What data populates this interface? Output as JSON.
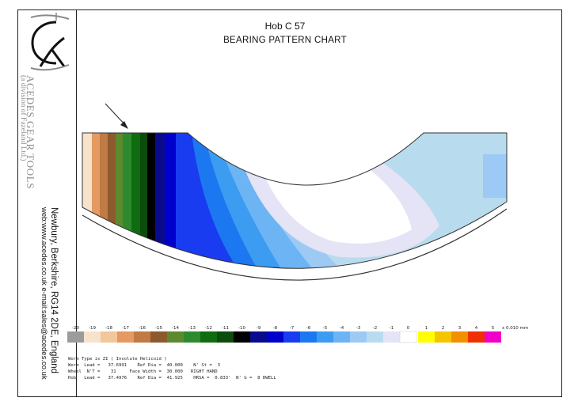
{
  "header": {
    "title": "Hob C 57",
    "subtitle": "BEARING PATTERN CHART"
  },
  "sidebar": {
    "company": "ACEDES GEAR TOOLS",
    "division": "(a division of Fazeland Ltd.)",
    "address": "Newbury, Berkshire, RG14 2DE, England",
    "contact": "web:www.acedes.co.uk   e-mail:sales@acedes.co.uk"
  },
  "spec": {
    "line1": "Worm Type is ZI ( Involute Helicoid )",
    "line2": "Worm  Lead =   37.6991    Ref Dia =  40.000    N' St =  3",
    "line3": "Wheel  N'T =    31     Face Width =  30.000   RIGHT HAND",
    "line4": "Hob   Lead =   37.4976    Ref Dia =  41.925    HRSA =  0.833'  N' G =  8 DWELL"
  },
  "chart_data": {
    "type": "heatmap",
    "title": "Hob C 57",
    "subtitle": "BEARING PATTERN CHART",
    "legend": {
      "unit_label": "x 0.010 mm",
      "negative_levels": [
        {
          "label": "-20",
          "color": "#9c9c9c"
        },
        {
          "label": "-19",
          "color": "#f7e3cc"
        },
        {
          "label": "-18",
          "color": "#f2c79a"
        },
        {
          "label": "-17",
          "color": "#e49a62"
        },
        {
          "label": "-16",
          "color": "#c07a44"
        },
        {
          "label": "-15",
          "color": "#8c5a2c"
        },
        {
          "label": "-14",
          "color": "#5c8a2e"
        },
        {
          "label": "-13",
          "color": "#2e8a2e"
        },
        {
          "label": "-12",
          "color": "#106c10"
        },
        {
          "label": "-11",
          "color": "#0c4c0c"
        },
        {
          "label": "-10",
          "color": "#000000"
        },
        {
          "label": "-9",
          "color": "#0a0a8c"
        },
        {
          "label": "-8",
          "color": "#0000cc"
        },
        {
          "label": "-7",
          "color": "#1a3cf0"
        },
        {
          "label": "-6",
          "color": "#1c78f0"
        },
        {
          "label": "-5",
          "color": "#3c9cf2"
        },
        {
          "label": "-4",
          "color": "#6cb4f4"
        },
        {
          "label": "-3",
          "color": "#9ccaf4"
        },
        {
          "label": "-2",
          "color": "#b8dcee"
        },
        {
          "label": "-1",
          "color": "#e4e4f6"
        },
        {
          "label": "0",
          "color": "#ffffff"
        }
      ],
      "positive_levels": [
        {
          "label": "1",
          "color": "#ffff00"
        },
        {
          "label": "2",
          "color": "#f5c500"
        },
        {
          "label": "3",
          "color": "#f29000"
        },
        {
          "label": "4",
          "color": "#f03000"
        },
        {
          "label": "5",
          "color": "#f000c8"
        }
      ]
    }
  }
}
